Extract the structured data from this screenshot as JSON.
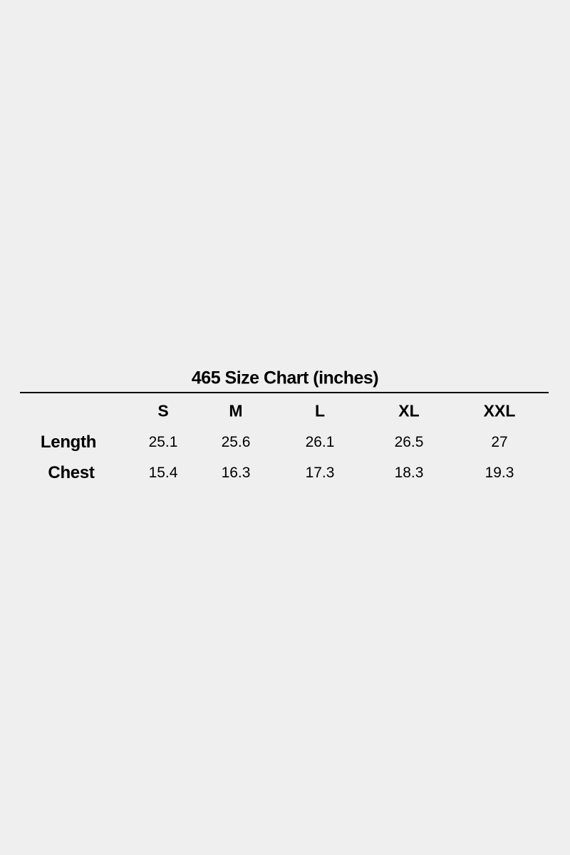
{
  "title": "465 Size Chart (inches)",
  "columns": [
    "S",
    "M",
    "L",
    "XL",
    "XXL"
  ],
  "rows": [
    {
      "label": "Length",
      "values": [
        "25.1",
        "25.6",
        "26.1",
        "26.5",
        "27"
      ]
    },
    {
      "label": "Chest",
      "values": [
        "15.4",
        "16.3",
        "17.3",
        "18.3",
        "19.3"
      ]
    }
  ]
}
